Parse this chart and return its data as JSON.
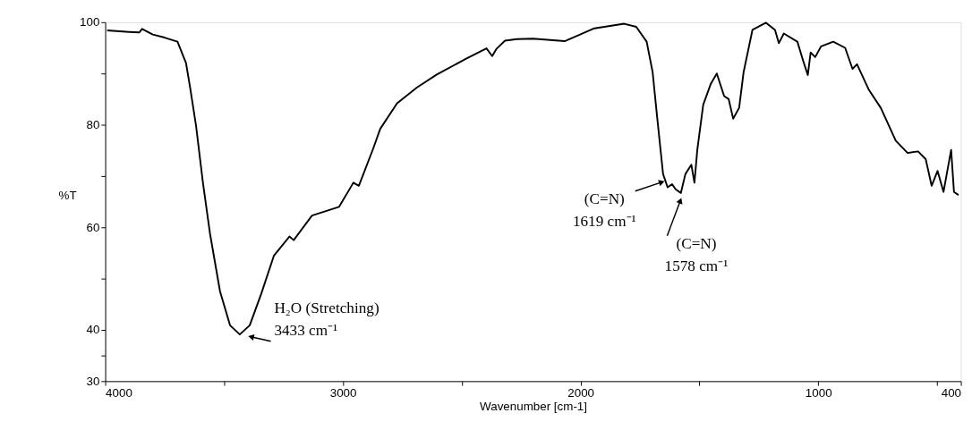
{
  "chart_data": {
    "type": "line",
    "xlabel": "Wavenumber [cm-1]",
    "ylabel": "%T",
    "xlim": [
      4000,
      400
    ],
    "ylim": [
      30,
      100
    ],
    "xticks": [
      4000,
      {
        "value": 3500,
        "label": null
      },
      3000,
      {
        "value": 2500,
        "label": null
      },
      2000,
      {
        "value": 1500,
        "label": null
      },
      1000,
      {
        "value": 500,
        "label": null
      },
      400
    ],
    "yticks": [
      30,
      {
        "value": 35,
        "label": null
      },
      40,
      {
        "value": 50,
        "label": null
      },
      60,
      {
        "value": 70,
        "label": null
      },
      80,
      {
        "value": 90,
        "label": null
      },
      100
    ],
    "grid": false,
    "legend": false,
    "marker": "none",
    "line_style": "solid",
    "series": [
      {
        "color": "#000000",
        "x": [
          3992,
          3900,
          3857,
          3845,
          3800,
          3750,
          3696,
          3660,
          3642,
          3618,
          3589,
          3559,
          3517,
          3475,
          3434,
          3392,
          3344,
          3290,
          3225,
          3207,
          3130,
          3016,
          2956,
          2933,
          2873,
          2843,
          2772,
          2688,
          2605,
          2485,
          2396,
          2372,
          2354,
          2318,
          2268,
          2200,
          2067,
          1942,
          1816,
          1766,
          1722,
          1697,
          1678,
          1653,
          1634,
          1615,
          1600,
          1578,
          1559,
          1534,
          1521,
          1509,
          1484,
          1452,
          1427,
          1396,
          1377,
          1358,
          1333,
          1314,
          1277,
          1220,
          1182,
          1166,
          1145,
          1088,
          1063,
          1044,
          1032,
          1013,
          988,
          937,
          887,
          856,
          837,
          787,
          737,
          674,
          624,
          580,
          548,
          523,
          498,
          473,
          441,
          429,
          410
        ],
        "values": [
          98.4,
          98.1,
          98.0,
          98.7,
          97.6,
          97.0,
          96.2,
          92.0,
          87.0,
          79.8,
          68.7,
          58.7,
          47.5,
          40.9,
          39.1,
          40.9,
          47.0,
          54.5,
          58.2,
          57.5,
          62.3,
          64.0,
          68.7,
          68.1,
          75.3,
          79.2,
          84.2,
          87.3,
          89.8,
          92.8,
          94.9,
          93.4,
          94.8,
          96.4,
          96.7,
          96.8,
          96.3,
          98.8,
          99.7,
          99.1,
          96.2,
          90.3,
          81.5,
          70.4,
          67.8,
          68.4,
          67.4,
          66.7,
          70.4,
          72.2,
          68.7,
          75.1,
          83.9,
          88.0,
          90.0,
          85.6,
          85.0,
          81.2,
          83.3,
          90.3,
          98.5,
          99.9,
          98.5,
          95.9,
          97.8,
          96.2,
          92.4,
          89.7,
          94.1,
          93.2,
          95.3,
          96.2,
          95.0,
          90.9,
          91.8,
          86.8,
          83.3,
          76.9,
          74.5,
          74.8,
          73.3,
          68.1,
          71.0,
          66.9,
          75.1,
          66.9,
          66.3
        ]
      }
    ],
    "annotations": [
      {
        "text": "H₂O (Stretching)\n3433 cm⁻¹",
        "x": 3433,
        "y": 39.1
      },
      {
        "text": "(C=N)\n1619 cm⁻¹",
        "x": 1619,
        "y": 68.4
      },
      {
        "text": "(C=N)\n1578 cm⁻¹",
        "x": 1578,
        "y": 66.7
      }
    ]
  }
}
